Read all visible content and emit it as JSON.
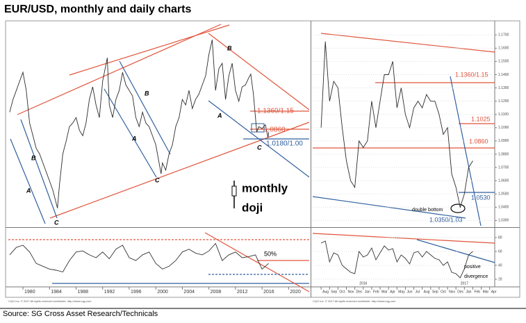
{
  "title": "EUR/USD, monthly and daily charts",
  "source": "Source: SG Cross Asset Research/Technicals",
  "chart_data": [
    {
      "type": "line",
      "xlim": [
        1977.8,
        2023.1
      ],
      "ylim": [
        0.553,
        1.665
      ],
      "series": [
        {
          "color": "#2a2a2a",
          "x": [
            1978,
            1978.5,
            1979,
            1979.5,
            1980,
            1980.5,
            1981,
            1981.5,
            1982,
            1982.5,
            1983,
            1983.5,
            1984,
            1984.5,
            1985.2,
            1985.5,
            1986,
            1986.5,
            1987,
            1987.5,
            1988,
            1988.5,
            1989,
            1989.5,
            1990,
            1990.5,
            1991,
            1991.5,
            1992,
            1992.7,
            1993,
            1993.5,
            1994,
            1994.5,
            1995,
            1995.5,
            1996,
            1996.5,
            1997,
            1997.5,
            1998,
            1998.5,
            1999,
            1999.5,
            2000,
            2000.8,
            2001,
            2001.5,
            2002,
            2002.5,
            2003,
            2003.5,
            2004,
            2004.5,
            2005,
            2005.5,
            2006,
            2006.5,
            2007,
            2007.5,
            2008,
            2008.5,
            2009,
            2009.5,
            2010,
            2010.5,
            2011,
            2011.5,
            2012,
            2012.5,
            2013,
            2013.5,
            2014,
            2014.3,
            2014.7,
            2015.2,
            2015.5,
            2016,
            2016.5,
            2016.9,
            2017
          ],
          "values": [
            1.18,
            1.25,
            1.3,
            1.35,
            1.4,
            1.3,
            1.12,
            1.05,
            0.98,
            0.95,
            0.9,
            0.85,
            0.8,
            0.75,
            0.65,
            0.78,
            0.95,
            1.02,
            1.1,
            1.12,
            1.15,
            1.08,
            1.05,
            1.12,
            1.25,
            1.32,
            1.22,
            1.15,
            1.35,
            1.48,
            1.22,
            1.15,
            1.25,
            1.3,
            1.4,
            1.33,
            1.3,
            1.27,
            1.15,
            1.1,
            1.18,
            1.12,
            1.1,
            1.05,
            1.0,
            0.84,
            0.9,
            0.86,
            0.95,
            1.0,
            1.1,
            1.15,
            1.25,
            1.22,
            1.3,
            1.2,
            1.25,
            1.28,
            1.33,
            1.38,
            1.5,
            1.58,
            1.3,
            1.42,
            1.45,
            1.25,
            1.38,
            1.45,
            1.3,
            1.24,
            1.32,
            1.33,
            1.37,
            1.39,
            1.28,
            1.07,
            1.1,
            1.09,
            1.11,
            1.04,
            1.07
          ]
        }
      ],
      "annotations": [
        {
          "text": "A",
          "color": "#000000"
        },
        {
          "text": "A",
          "color": "#000000"
        },
        {
          "text": "A",
          "color": "#000000"
        },
        {
          "text": "B",
          "color": "#000000"
        },
        {
          "text": "B",
          "color": "#000000"
        },
        {
          "text": "B",
          "color": "#000000"
        },
        {
          "text": "C",
          "color": "#000000"
        },
        {
          "text": "C",
          "color": "#000000"
        },
        {
          "text": "C",
          "color": "#000000"
        },
        {
          "text": "1.1360/1.15",
          "color": "#e0533a"
        },
        {
          "text": "1.0860",
          "color": "#e0533a"
        },
        {
          "text": "1.0180/1.00",
          "color": "#2f5f9e"
        },
        {
          "text": "monthly",
          "color": "#000000"
        },
        {
          "text": "doji",
          "color": "#000000"
        }
      ]
    },
    {
      "type": "line",
      "xlim": [
        1977.8,
        2023.1
      ],
      "ylim": [
        0,
        100
      ],
      "xticks": [
        1980,
        1984,
        1988,
        1992,
        1996,
        2000,
        2004,
        2008,
        2012,
        2016,
        2020
      ],
      "series": [
        {
          "color": "#333333",
          "x": [
            1978,
            1979,
            1980,
            1981,
            1982,
            1983,
            1984,
            1985,
            1986,
            1987,
            1988,
            1989,
            1990,
            1991,
            1992,
            1993,
            1994,
            1995,
            1996,
            1997,
            1998,
            1999,
            2000,
            2001,
            2002,
            2003,
            2004,
            2005,
            2006,
            2007,
            2008,
            2009,
            2010,
            2011,
            2012,
            2013,
            2014,
            2015,
            2016,
            2017
          ],
          "values": [
            55,
            68,
            72,
            60,
            40,
            35,
            30,
            28,
            25,
            45,
            60,
            62,
            55,
            50,
            60,
            48,
            65,
            72,
            50,
            45,
            55,
            60,
            40,
            30,
            35,
            45,
            60,
            65,
            58,
            55,
            62,
            75,
            45,
            55,
            60,
            50,
            52,
            55,
            30,
            40
          ]
        }
      ],
      "annotations": [
        {
          "text": "50%",
          "color": "#000000"
        }
      ],
      "copyright": "CQG Inc. © 2017 All rights reserved worldwide. http://www.cqg.com"
    },
    {
      "type": "line",
      "xlim": [
        -1,
        20.6
      ],
      "ylim": [
        1.026,
        1.178
      ],
      "yticks": [
        {
          "value": 1.17,
          "label": "1.1700"
        },
        {
          "value": 1.16,
          "label": "1.1600"
        },
        {
          "value": 1.15,
          "label": "1.1500"
        },
        {
          "value": 1.14,
          "label": "1.1400"
        },
        {
          "value": 1.13,
          "label": "1.1300"
        },
        {
          "value": 1.12,
          "label": "1.1200"
        },
        {
          "value": 1.11,
          "label": "1.1100"
        },
        {
          "value": 1.1,
          "label": "1.1000"
        },
        {
          "value": 1.09,
          "label": "1.0900"
        },
        {
          "value": 1.08,
          "label": "1.0800"
        },
        {
          "value": 1.07,
          "label": "1.0700"
        },
        {
          "value": 1.06,
          "label": "1.0600"
        },
        {
          "value": 1.05,
          "label": "1.0500"
        },
        {
          "value": 1.04,
          "label": "1.0400"
        },
        {
          "value": 1.03,
          "label": "1.0300"
        }
      ],
      "series": [
        {
          "color": "#2a2a2a",
          "x": [
            0,
            0.5,
            1,
            1.5,
            2,
            2.5,
            3,
            3.5,
            4,
            4.5,
            5,
            5.5,
            6,
            6.5,
            7,
            7.5,
            8,
            8.5,
            9,
            9.5,
            10,
            10.5,
            11,
            11.5,
            12,
            12.5,
            13,
            13.5,
            14,
            14.5,
            15,
            15.5,
            16,
            16.5,
            17,
            17.5,
            18
          ],
          "values": [
            1.1,
            1.165,
            1.12,
            1.135,
            1.13,
            1.1,
            1.075,
            1.06,
            1.055,
            1.09,
            1.085,
            1.09,
            1.12,
            1.1,
            1.12,
            1.14,
            1.14,
            1.15,
            1.115,
            1.13,
            1.11,
            1.1,
            1.115,
            1.12,
            1.115,
            1.125,
            1.12,
            1.12,
            1.11,
            1.095,
            1.1,
            1.065,
            1.055,
            1.04,
            1.05,
            1.07,
            1.075
          ]
        }
      ],
      "annotations": [
        {
          "text": "1.1360/1.15",
          "color": "#e0533a"
        },
        {
          "text": "1.1025",
          "color": "#e0533a"
        },
        {
          "text": "1.0860",
          "color": "#e0533a"
        },
        {
          "text": "1.0530",
          "color": "#2f5f9e"
        },
        {
          "text": "double bottom",
          "color": "#000000"
        },
        {
          "text": "1.0350/1.03",
          "color": "#2f5f9e"
        }
      ]
    },
    {
      "type": "line",
      "xlim": [
        -1,
        20.6
      ],
      "ylim": [
        10,
        92
      ],
      "yticks": [
        20,
        40,
        60,
        80
      ],
      "xticks": [
        {
          "value": 0,
          "label": "Aug"
        },
        {
          "value": 1,
          "label": "Sep"
        },
        {
          "value": 2,
          "label": "Oct"
        },
        {
          "value": 3,
          "label": "Nov"
        },
        {
          "value": 4,
          "label": "Dec"
        },
        {
          "value": 5,
          "label": "Jan"
        },
        {
          "value": 6,
          "label": "Feb"
        },
        {
          "value": 7,
          "label": "Mar"
        },
        {
          "value": 8,
          "label": "Apr"
        },
        {
          "value": 9,
          "label": "May"
        },
        {
          "value": 10,
          "label": "Jun"
        },
        {
          "value": 11,
          "label": "Jul"
        },
        {
          "value": 12,
          "label": "Aug"
        },
        {
          "value": 13,
          "label": "Sep"
        },
        {
          "value": 14,
          "label": "Oct"
        },
        {
          "value": 15,
          "label": "Nov"
        },
        {
          "value": 16,
          "label": "Dec"
        },
        {
          "value": 17,
          "label": "Jan"
        },
        {
          "value": 18,
          "label": "Feb"
        },
        {
          "value": 19,
          "label": "Mar"
        },
        {
          "value": 20,
          "label": "Apr"
        }
      ],
      "year_ticks": [
        {
          "value": 5,
          "label": "2016"
        },
        {
          "value": 17,
          "label": "2017"
        }
      ],
      "series": [
        {
          "color": "#333333",
          "x": [
            0,
            0.5,
            1,
            1.5,
            2,
            2.5,
            3,
            3.5,
            4,
            4.5,
            5,
            5.5,
            6,
            6.5,
            7,
            7.5,
            8,
            8.5,
            9,
            9.5,
            10,
            10.5,
            11,
            11.5,
            12,
            12.5,
            13,
            13.5,
            14,
            14.5,
            15,
            15.5,
            16,
            16.5,
            17,
            17.5,
            18
          ],
          "values": [
            72,
            75,
            45,
            58,
            55,
            40,
            35,
            30,
            28,
            60,
            52,
            55,
            65,
            48,
            58,
            68,
            62,
            64,
            45,
            55,
            50,
            42,
            58,
            60,
            52,
            60,
            55,
            50,
            48,
            40,
            45,
            30,
            28,
            22,
            35,
            55,
            60
          ]
        }
      ],
      "annotations": [
        {
          "text": "positive",
          "color": "#000000"
        },
        {
          "text": "divergence",
          "color": "#000000"
        }
      ],
      "copyright": "CQG Inc. © 2017 All rights reserved worldwide. http://www.cqg.com"
    }
  ]
}
